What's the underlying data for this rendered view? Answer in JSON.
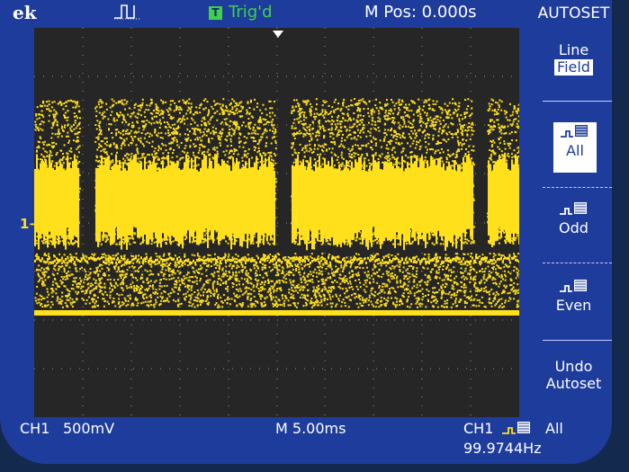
{
  "topbar": {
    "brand": "ek",
    "trigger_badge": "T",
    "trigger_status": "Trig'd",
    "main_position": "M Pos: 0.000s"
  },
  "menu": {
    "title": "AUTOSET",
    "line": "Line",
    "field": "Field",
    "all": "All",
    "odd": "Odd",
    "even": "Even",
    "undo_line1": "Undo",
    "undo_line2": "Autoset"
  },
  "waveform": {
    "channel_marker": "1",
    "trace_color": "#ffe01a"
  },
  "bottom": {
    "ch1_label": "CH1",
    "ch1_scale": "500mV",
    "timebase": "M 5.00ms",
    "trigger_source": "CH1",
    "trigger_mode": "All",
    "frequency": "99.9744Hz"
  },
  "colors": {
    "screen_bg": "#1e3c9c",
    "graticule_bg": "#262626",
    "trace": "#ffe01a",
    "trigger_badge": "#3fd14b"
  }
}
